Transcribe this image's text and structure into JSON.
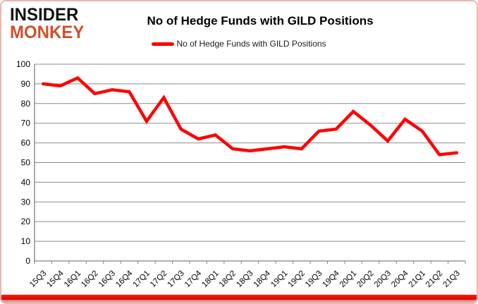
{
  "logo": {
    "line1": "INSIDER",
    "line2": "MONKEY"
  },
  "header": {
    "title": "No of Hedge Funds with GILD Positions"
  },
  "legend": {
    "label": "No of Hedge Funds with GILD Positions"
  },
  "colors": {
    "series_line": "#fe0000",
    "grid": "#8c8c8c",
    "axis": "#808080",
    "tick_text": "#000000",
    "logo_top": "#111111",
    "logo_accent": "#d14f2a",
    "frame_border": "#f3b3ab",
    "bottom_bar": "#e60000"
  },
  "chart_data": {
    "type": "line",
    "title": "No of Hedge Funds with GILD Positions",
    "categories": [
      "15Q3",
      "15Q4",
      "16Q1",
      "16Q2",
      "16Q3",
      "16Q4",
      "17Q1",
      "17Q2",
      "17Q3",
      "17Q4",
      "18Q1",
      "18Q2",
      "18Q3",
      "18Q4",
      "19Q1",
      "19Q2",
      "19Q3",
      "19Q4",
      "20Q1",
      "20Q2",
      "20Q3",
      "20Q4",
      "21Q1",
      "21Q2",
      "21Q3"
    ],
    "values": [
      90,
      89,
      93,
      85,
      87,
      86,
      71,
      83,
      67,
      62,
      64,
      57,
      56,
      57,
      58,
      57,
      66,
      67,
      76,
      69,
      61,
      72,
      66,
      54,
      55
    ],
    "series_name": "No of Hedge Funds with GILD Positions",
    "xlabel": "",
    "ylabel": "",
    "ylim": [
      0,
      100
    ],
    "yticks": [
      0,
      10,
      20,
      30,
      40,
      50,
      60,
      70,
      80,
      90,
      100
    ],
    "grid": true,
    "legend_position": "top"
  }
}
